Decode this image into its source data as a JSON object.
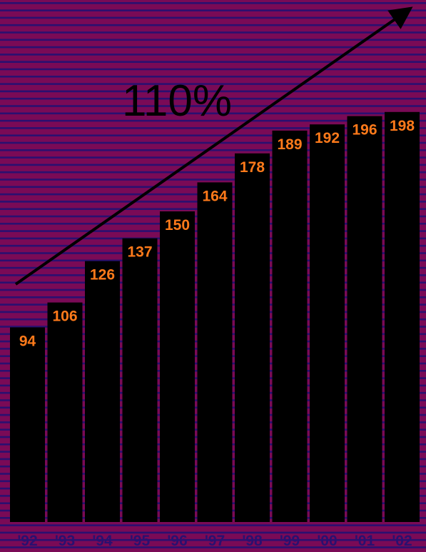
{
  "chart_data": {
    "type": "bar",
    "categories": [
      "'92",
      "'93",
      "'94",
      "'95",
      "'96",
      "'97",
      "'98",
      "'99",
      "'00",
      "'01",
      "'02"
    ],
    "values": [
      94,
      106,
      126,
      137,
      150,
      164,
      178,
      189,
      192,
      196,
      198
    ],
    "annotation": "110%",
    "ylim": [
      0,
      250
    ],
    "grid": false,
    "legend": "none"
  },
  "colors": {
    "background": "#7a0a56",
    "stripe": "#2a1070",
    "bar": "#000000",
    "label": "#ff7a1a",
    "tick": "#2a1070",
    "annotation": "#000000",
    "arrow": "#000000"
  }
}
